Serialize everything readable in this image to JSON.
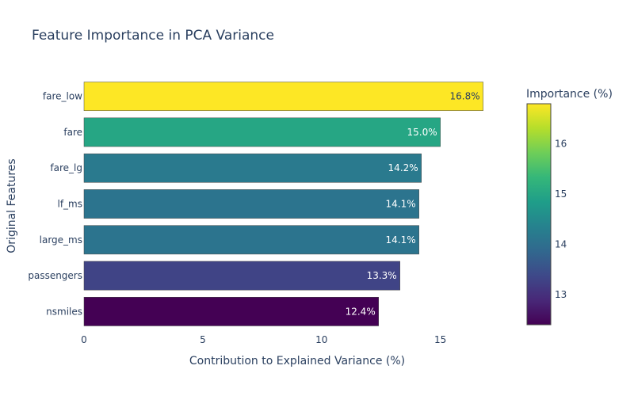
{
  "chart_data": {
    "type": "bar",
    "orientation": "horizontal",
    "title": "Feature Importance in PCA Variance",
    "xlabel": "Contribution to Explained Variance (%)",
    "ylabel": "Original Features",
    "categories": [
      "fare_low",
      "fare",
      "fare_lg",
      "lf_ms",
      "large_ms",
      "passengers",
      "nsmiles"
    ],
    "values": [
      16.8,
      15.0,
      14.2,
      14.1,
      14.1,
      13.3,
      12.4
    ],
    "data_labels": [
      "16.8%",
      "15.0%",
      "14.2%",
      "14.1%",
      "14.1%",
      "13.3%",
      "12.4%"
    ],
    "xlim": [
      0,
      17.68
    ],
    "xticks": [
      0,
      5,
      10,
      15
    ],
    "grid": false,
    "colorscale": "Viridis",
    "colorbar": {
      "title": "Importance (%)",
      "range": [
        12.4,
        16.8
      ],
      "ticks": [
        13,
        14,
        15,
        16
      ]
    }
  }
}
